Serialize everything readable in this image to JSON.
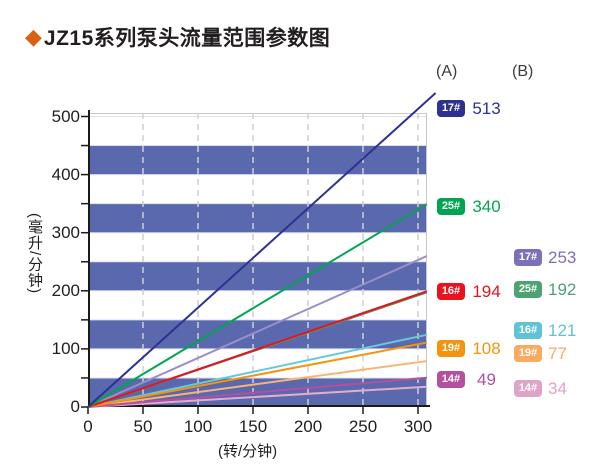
{
  "title": {
    "diamond_icon": "◆",
    "diamond_color": "#d96114",
    "text": "JZ15系列泵头流量范围参数图"
  },
  "columns": {
    "a_header": "(A)",
    "b_header": "(B)"
  },
  "chart_data": {
    "type": "line",
    "title": "JZ15系列泵头流量范围参数图",
    "xlabel": "(转/分钟)",
    "ylabel": "(毫升/分钟)",
    "xlim": [
      0,
      300
    ],
    "ylim": [
      0,
      500
    ],
    "x_ticks": [
      "0",
      "50",
      "100",
      "150",
      "200",
      "250",
      "300"
    ],
    "y_ticks": [
      "0",
      "100",
      "200",
      "300",
      "400",
      "500"
    ],
    "grid": "vertical-dashed-gray",
    "legend_position": "right, two columns (A) and (B)",
    "background_stripes": {
      "color": "#5a68ae",
      "bands": [
        [
          0,
          50
        ],
        [
          100,
          150
        ],
        [
          200,
          250
        ],
        [
          300,
          350
        ],
        [
          400,
          450
        ]
      ]
    },
    "series": [
      {
        "group": "(A)",
        "name": "17#",
        "x": [
          0,
          300
        ],
        "y": [
          0,
          513
        ],
        "value": 513,
        "color": "#2d3192",
        "line_color": "#2d3192"
      },
      {
        "group": "(A)",
        "name": "25#",
        "x": [
          0,
          300
        ],
        "y": [
          0,
          340
        ],
        "value": 340,
        "color": "#00a551",
        "line_color": "#00a551"
      },
      {
        "group": "(A)",
        "name": "16#",
        "x": [
          0,
          300
        ],
        "y": [
          0,
          194
        ],
        "value": 194,
        "color": "#e8131f",
        "line_color": "#e8131f"
      },
      {
        "group": "(A)",
        "name": "19#",
        "x": [
          0,
          300
        ],
        "y": [
          0,
          108
        ],
        "value": 108,
        "color": "#f6930e",
        "line_color": "#f6930e"
      },
      {
        "group": "(A)",
        "name": "14#",
        "x": [
          0,
          300
        ],
        "y": [
          0,
          49
        ],
        "value": 49,
        "color": "#b4509e",
        "line_color": "#b4509e"
      },
      {
        "group": "(B)",
        "name": "17#",
        "x": [
          0,
          300
        ],
        "y": [
          0,
          253
        ],
        "value": 253,
        "color": "#7c70b8",
        "line_color": "#998fc9"
      },
      {
        "group": "(B)",
        "name": "25#",
        "x": [
          0,
          300
        ],
        "y": [
          0,
          192
        ],
        "value": 192,
        "color": "#4ea271",
        "line_color": "#46a35e"
      },
      {
        "group": "(B)",
        "name": "16#",
        "x": [
          0,
          300
        ],
        "y": [
          0,
          121
        ],
        "value": 121,
        "color": "#5ec3d6",
        "line_color": "#66c9da"
      },
      {
        "group": "(B)",
        "name": "19#",
        "x": [
          0,
          300
        ],
        "y": [
          0,
          77
        ],
        "value": 77,
        "color": "#f8ab61",
        "line_color": "#f9b570"
      },
      {
        "group": "(B)",
        "name": "14#",
        "x": [
          0,
          300
        ],
        "y": [
          0,
          34
        ],
        "value": 34,
        "color": "#dfa3c7",
        "line_color": "#e4abca"
      }
    ]
  }
}
